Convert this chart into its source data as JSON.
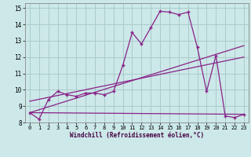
{
  "xlabel": "Windchill (Refroidissement éolien,°C)",
  "bg_color": "#cce8e8",
  "grid_color": "#aacccc",
  "line_color": "#882288",
  "xlim": [
    -0.5,
    23.5
  ],
  "ylim": [
    8,
    15.3
  ],
  "xticks": [
    0,
    1,
    2,
    3,
    4,
    5,
    6,
    7,
    8,
    9,
    10,
    11,
    12,
    13,
    14,
    15,
    16,
    17,
    18,
    19,
    20,
    21,
    22,
    23
  ],
  "yticks": [
    8,
    9,
    10,
    11,
    12,
    13,
    14,
    15
  ],
  "series1_x": [
    0,
    1,
    2,
    3,
    4,
    5,
    6,
    7,
    8,
    9,
    10,
    11,
    12,
    13,
    14,
    15,
    16,
    17,
    18,
    19,
    20,
    21,
    22,
    23
  ],
  "series1_y": [
    8.6,
    8.2,
    9.4,
    9.9,
    9.7,
    9.6,
    9.8,
    9.8,
    9.7,
    9.9,
    11.5,
    13.5,
    12.8,
    13.8,
    14.8,
    14.75,
    14.6,
    14.75,
    12.6,
    9.9,
    12.1,
    8.4,
    8.3,
    8.5
  ],
  "line1_x": [
    0,
    23
  ],
  "line1_y": [
    8.6,
    12.7
  ],
  "line2_x": [
    0,
    23
  ],
  "line2_y": [
    9.3,
    12.0
  ],
  "line3_x": [
    0,
    23
  ],
  "line3_y": [
    8.6,
    8.5
  ]
}
